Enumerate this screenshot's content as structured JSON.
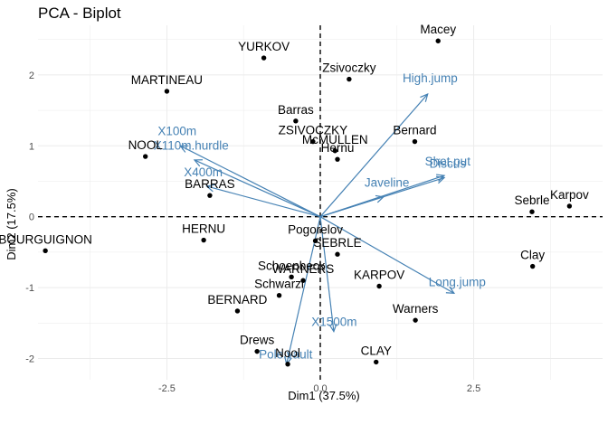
{
  "chart_data": {
    "type": "scatter",
    "title": "PCA - Biplot",
    "xlabel": "Dim1 (37.5%)",
    "ylabel": "Dim2 (17.5%)",
    "xlim": [
      -4.6,
      4.6
    ],
    "ylim": [
      -2.3,
      2.7
    ],
    "xticks": [
      -2.5,
      0,
      2.5
    ],
    "xtick_labels": [
      "-2.5",
      "0.0",
      "2.5"
    ],
    "yticks": [
      -2,
      -1,
      0,
      1,
      2
    ],
    "ytick_labels": [
      "-2",
      "-1",
      "0",
      "1",
      "2"
    ],
    "grid": true,
    "reference_lines": "dashed at x=0 and y=0",
    "colors": {
      "individuals": "#000000",
      "variables": "#4682B4",
      "grid": "#ebebeb"
    },
    "individuals": [
      {
        "label": "Macey",
        "x": 1.92,
        "y": 2.48
      },
      {
        "label": "YURKOV",
        "x": -0.92,
        "y": 2.24
      },
      {
        "label": "Zsivoczky",
        "x": 0.47,
        "y": 1.94
      },
      {
        "label": "MARTINEAU",
        "x": -2.5,
        "y": 1.77
      },
      {
        "label": "Barras",
        "x": -0.4,
        "y": 1.35
      },
      {
        "label": "ZSIVOCZKY",
        "x": -0.12,
        "y": 1.06
      },
      {
        "label": "McMULLEN",
        "x": 0.24,
        "y": 0.93
      },
      {
        "label": "Bernard",
        "x": 1.54,
        "y": 1.06
      },
      {
        "label": "Hernu",
        "x": 0.28,
        "y": 0.81
      },
      {
        "label": "NOOL",
        "x": -2.85,
        "y": 0.85
      },
      {
        "label": "BARRAS",
        "x": -1.8,
        "y": 0.3
      },
      {
        "label": "Sebrle",
        "x": 3.45,
        "y": 0.07
      },
      {
        "label": "Karpov",
        "x": 4.06,
        "y": 0.15
      },
      {
        "label": "BOURGUIGNON",
        "x": -4.48,
        "y": -0.48
      },
      {
        "label": "HERNU",
        "x": -1.9,
        "y": -0.33
      },
      {
        "label": "Pogorelov",
        "x": -0.08,
        "y": -0.34
      },
      {
        "label": "SEBRLE",
        "x": 0.28,
        "y": -0.53
      },
      {
        "label": "Clay",
        "x": 3.46,
        "y": -0.7
      },
      {
        "label": "Schoenbeck",
        "x": -0.47,
        "y": -0.85
      },
      {
        "label": "WARNERS",
        "x": -0.28,
        "y": -0.9
      },
      {
        "label": "KARPOV",
        "x": 0.96,
        "y": -0.98
      },
      {
        "label": "Schwarzl",
        "x": -0.67,
        "y": -1.11
      },
      {
        "label": "BERNARD",
        "x": -1.35,
        "y": -1.33
      },
      {
        "label": "Warners",
        "x": 1.55,
        "y": -1.46
      },
      {
        "label": "Drews",
        "x": -1.03,
        "y": -1.9
      },
      {
        "label": "Nool",
        "x": -0.53,
        "y": -2.08
      },
      {
        "label": "CLAY",
        "x": 0.91,
        "y": -2.05
      }
    ],
    "variables": [
      {
        "label": "High.jump",
        "x": 1.75,
        "y": 1.73
      },
      {
        "label": "Shot.put",
        "x": 2.02,
        "y": 0.58
      },
      {
        "label": "Discus",
        "x": 2.02,
        "y": 0.55
      },
      {
        "label": "Javeline",
        "x": 1.03,
        "y": 0.28
      },
      {
        "label": "Long.jump",
        "x": 2.18,
        "y": -1.08
      },
      {
        "label": "X1500m",
        "x": 0.22,
        "y": -1.62
      },
      {
        "label": "Pole.vault",
        "x": -0.55,
        "y": -2.08
      },
      {
        "label": "X100m",
        "x": -2.28,
        "y": 1.0
      },
      {
        "label": "X110m.hurdle",
        "x": -2.05,
        "y": 0.8
      },
      {
        "label": "X400m",
        "x": -1.85,
        "y": 0.43
      }
    ]
  }
}
